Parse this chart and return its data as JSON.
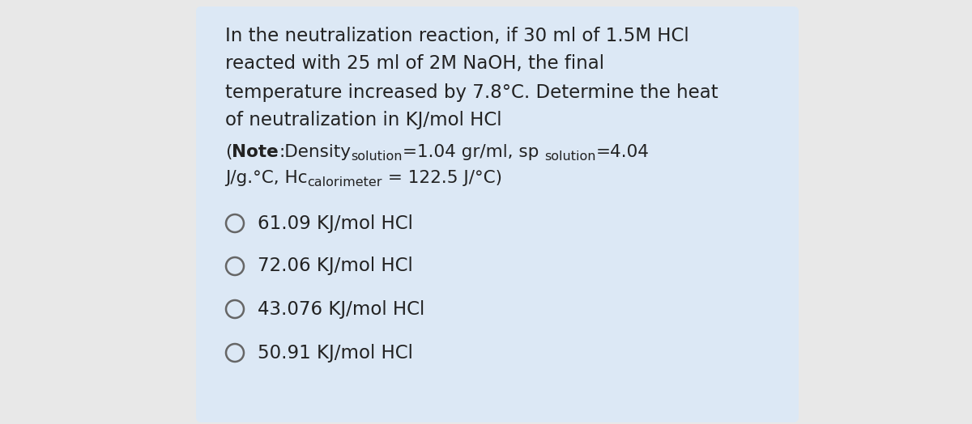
{
  "panel_color": "#dce8f5",
  "text_color": "#222222",
  "fig_bg": "#e8e8e8",
  "question_lines": [
    "In the neutralization reaction, if 30 ml of 1.5M HCl",
    "reacted with 25 ml of 2M NaOH, the final",
    "temperature increased by 7.8°C. Determine the heat",
    "of neutralization in KJ/mol HCl"
  ],
  "note_line1_parts": [
    {
      "text": "(",
      "bold": false,
      "sub": false,
      "sub_after": false
    },
    {
      "text": "Note",
      "bold": true,
      "sub": false,
      "sub_after": false
    },
    {
      "text": ":Density",
      "bold": false,
      "sub": false,
      "sub_after": false
    },
    {
      "text": "solution",
      "bold": false,
      "sub": true,
      "sub_after": false
    },
    {
      "text": "=1.04 gr/ml, sp ",
      "bold": false,
      "sub": false,
      "sub_after": false
    },
    {
      "text": "solution",
      "bold": false,
      "sub": true,
      "sub_after": false
    },
    {
      "text": "=4.04",
      "bold": false,
      "sub": false,
      "sub_after": false
    }
  ],
  "note_line2_parts": [
    {
      "text": "J/g.°C, Hc",
      "bold": false,
      "sub": false,
      "sub_after": false
    },
    {
      "text": "calorimeter",
      "bold": false,
      "sub": true,
      "sub_after": false
    },
    {
      "text": " = 122.5 J/°C)",
      "bold": false,
      "sub": false,
      "sub_after": false
    }
  ],
  "choices": [
    "61.09 KJ/mol HCl",
    "72.06 KJ/mol HCl",
    "43.076 KJ/mol HCl",
    "50.91 KJ/mol HCl"
  ],
  "font_size_question": 16.5,
  "font_size_note": 15.5,
  "font_size_note_sub": 11.5,
  "font_size_choices": 16.5,
  "sub_drop_pt": -3.5
}
